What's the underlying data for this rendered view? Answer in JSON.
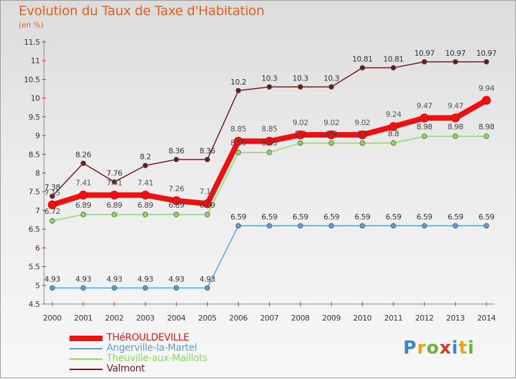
{
  "title": "Evolution du Taux de Taxe d'Habitation",
  "unit": "(en %)",
  "logo": {
    "text": "Proxiti",
    "colors": [
      "#3a86c8",
      "#e8a21c",
      "#6fb43a",
      "#d33a2c",
      "#3a86c8",
      "#e8a21c",
      "#6fb43a"
    ]
  },
  "colors": {
    "THéROULDEVILLE": "#ee1111",
    "Angerville-la-Martel": "#5a9fd4",
    "Theuville-aux-Maillots": "#8fd860",
    "Valmont": "#6b1a1a"
  },
  "chart_data": {
    "type": "line",
    "title": "Evolution du Taux de Taxe d'Habitation",
    "ylabel": "(en %)",
    "xlabel": "",
    "x": [
      "2000",
      "2001",
      "2002",
      "2003",
      "2004",
      "2005",
      "2006",
      "2007",
      "2008",
      "2009",
      "2010",
      "2011",
      "2012",
      "2013",
      "2014"
    ],
    "ylim": [
      4.5,
      11.5
    ],
    "yticks": [
      "4.5",
      "5",
      "5.5",
      "6",
      "6.5",
      "7",
      "7.5",
      "8",
      "8.5",
      "9",
      "9.5",
      "10",
      "10.5",
      "11",
      "11.5"
    ],
    "grid": false,
    "legend": "bottom-left",
    "series": [
      {
        "name": "THéROULDEVILLE",
        "values": [
          7.15,
          7.41,
          7.41,
          7.41,
          7.26,
          7.18,
          8.85,
          8.85,
          9.02,
          9.02,
          9.02,
          9.24,
          9.47,
          9.47,
          9.94
        ],
        "labels": [
          "7.15",
          "7.41",
          "7.41",
          "7.41",
          "7.26",
          "7.18",
          "8.85",
          "8.85",
          "9.02",
          "9.02",
          "9.02",
          "9.24",
          "9.47",
          "9.47",
          "9.94"
        ]
      },
      {
        "name": "Angerville-la-Martel",
        "values": [
          4.93,
          4.93,
          4.93,
          4.93,
          4.93,
          4.93,
          6.59,
          6.59,
          6.59,
          6.59,
          6.59,
          6.59,
          6.59,
          6.59,
          6.59
        ],
        "labels": [
          "4.93",
          "4.93",
          "4.93",
          "4.93",
          "4.93",
          "4.93",
          "6.59",
          "6.59",
          "6.59",
          "6.59",
          "6.59",
          "6.59",
          "6.59",
          "6.59",
          "6.59"
        ]
      },
      {
        "name": "Theuville-aux-Maillots",
        "values": [
          6.72,
          6.89,
          6.89,
          6.89,
          6.89,
          6.89,
          8.55,
          8.55,
          8.8,
          8.8,
          8.8,
          8.8,
          8.98,
          8.98,
          8.98
        ],
        "labels": [
          "6.72",
          "6.89",
          "6.89",
          "6.89",
          "6.89",
          "6.89",
          "8.55",
          "8.55",
          "8.8",
          "8.8",
          "8.8",
          "8.8",
          "8.98",
          "8.98",
          "8.98"
        ]
      },
      {
        "name": "Valmont",
        "values": [
          7.38,
          8.26,
          7.76,
          8.2,
          8.36,
          8.36,
          10.2,
          10.3,
          10.3,
          10.3,
          10.81,
          10.81,
          10.97,
          10.97,
          10.97
        ],
        "labels": [
          "7.38",
          "8.26",
          "7.76",
          "8.2",
          "8.36",
          "8.36",
          "10.2",
          "10.3",
          "10.3",
          "10.3",
          "10.81",
          "10.81",
          "10.97",
          "10.97",
          "10.97"
        ]
      }
    ]
  }
}
